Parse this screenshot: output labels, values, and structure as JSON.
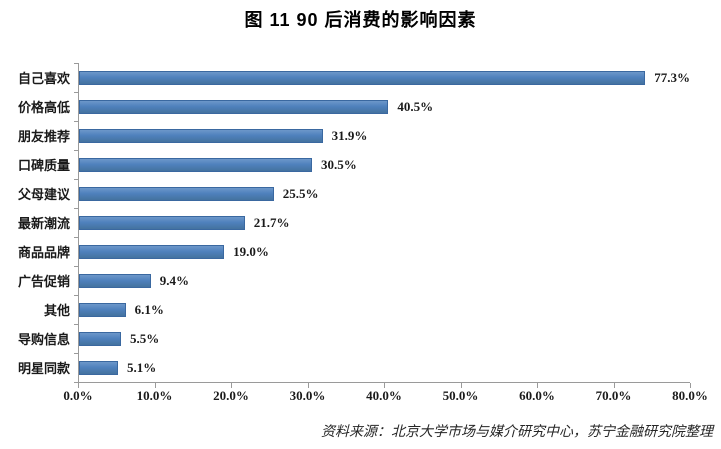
{
  "title": "图 11  90 后消费的影响因素",
  "source_note": "资料来源：北京大学市场与媒介研究中心，苏宁金融研究院整理",
  "colors": {
    "bar_fill": "#4f81bd",
    "bar_border": "#3a68a0",
    "axis_line": "#9a9a9a",
    "text": "#1a1a1a"
  },
  "chart_data": {
    "type": "bar",
    "orientation": "horizontal",
    "title": "图 11  90 后消费的影响因素",
    "categories": [
      "自己喜欢",
      "价格高低",
      "朋友推荐",
      "口碑质量",
      "父母建议",
      "最新潮流",
      "商品品牌",
      "广告促销",
      "其他",
      "导购信息",
      "明星同款"
    ],
    "values": [
      77.3,
      40.5,
      31.9,
      30.5,
      25.5,
      21.7,
      19.0,
      9.4,
      6.1,
      5.5,
      5.1
    ],
    "value_labels": [
      "77.3%",
      "40.5%",
      "31.9%",
      "30.5%",
      "25.5%",
      "21.7%",
      "19.0%",
      "9.4%",
      "6.1%",
      "5.5%",
      "5.1%"
    ],
    "xlabel": "",
    "ylabel": "",
    "xlim": [
      0,
      80
    ],
    "x_ticks": [
      "0.0%",
      "10.0%",
      "20.0%",
      "30.0%",
      "40.0%",
      "50.0%",
      "60.0%",
      "70.0%",
      "80.0%"
    ],
    "grid": false,
    "legend": false,
    "data_labels": true
  }
}
